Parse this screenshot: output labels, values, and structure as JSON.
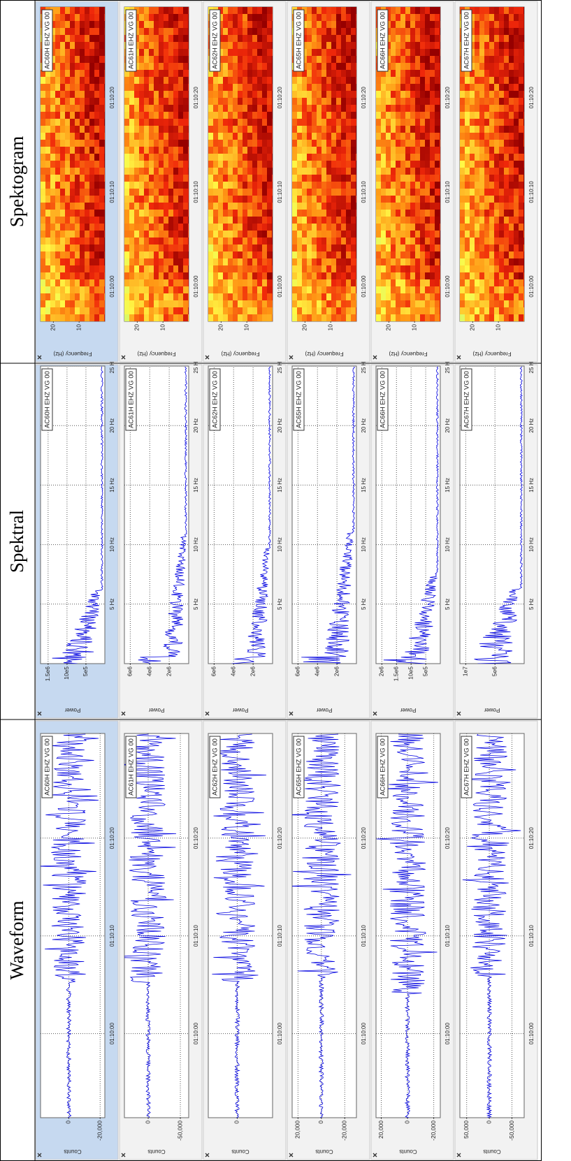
{
  "columns": [
    {
      "title": "Waveform",
      "y_axis_label": "Counts",
      "xlim": [
        4191.4,
        4230.7
      ],
      "xticks": [
        {
          "value": 4200,
          "label": "01:10:00"
        },
        {
          "value": 4210,
          "label": "01:10:10"
        },
        {
          "value": 4220,
          "label": "01:10:20"
        }
      ],
      "panels": [
        {
          "station": "AC60H EHZ VG 00",
          "ylim": [
            -23000,
            18000
          ],
          "yticks": [
            0,
            {
              "value": -20000,
              "label": "-20,000"
            }
          ]
        },
        {
          "station": "AC61H EHZ VG 00",
          "ylim": [
            -63000,
            37000
          ],
          "yticks": [
            0,
            {
              "value": -50000,
              "label": "-50,000"
            }
          ]
        },
        {
          "station": "AC62H EHZ VG 00",
          "ylim": [
            -55000,
            45000
          ],
          "yticks": [
            0
          ]
        },
        {
          "station": "AC65H EHZ VG 00",
          "ylim": [
            -30000,
            25000
          ],
          "yticks": [
            {
              "value": 20000,
              "label": "20,000"
            },
            0,
            {
              "value": -20000,
              "label": "-20,000"
            }
          ]
        },
        {
          "station": "AC66H EHZ VG 00",
          "ylim": [
            -25000,
            24000
          ],
          "yticks": [
            {
              "value": 20000,
              "label": "20,000"
            },
            0,
            {
              "value": -20000,
              "label": "-20,000"
            }
          ]
        },
        {
          "station": "AC67H EHZ VG 00",
          "ylim": [
            -77000,
            65000
          ],
          "yticks": [
            {
              "value": 50000,
              "label": "50,000"
            },
            0,
            {
              "value": -50000,
              "label": "-50,000"
            }
          ]
        }
      ]
    },
    {
      "title": "Spektral",
      "y_axis_label": "Power",
      "xlim": [
        0,
        25
      ],
      "xticks": [
        {
          "value": 5,
          "label": "5 Hz"
        },
        {
          "value": 10,
          "label": "10 Hz"
        },
        {
          "value": 15,
          "label": "15 Hz"
        },
        {
          "value": 20,
          "label": "20 Hz"
        },
        {
          "value": 25,
          "label": "25 Hz"
        }
      ],
      "panels": [
        {
          "station": "AC60H EHZ VG 00",
          "ylim": [
            0,
            1700000
          ],
          "yticks": [
            {
              "value": 1500000,
              "label": "1.5e6"
            },
            {
              "value": 1000000,
              "label": "10e5"
            },
            {
              "value": 500000,
              "label": "5e5"
            }
          ]
        },
        {
          "station": "AC61H EHZ VG 00",
          "ylim": [
            0,
            6600000
          ],
          "yticks": [
            {
              "value": 6000000,
              "label": "6e6"
            },
            {
              "value": 4000000,
              "label": "4e6"
            },
            {
              "value": 2000000,
              "label": "2e6"
            }
          ]
        },
        {
          "station": "AC62H EHZ VG 00",
          "ylim": [
            0,
            6600000
          ],
          "yticks": [
            {
              "value": 6000000,
              "label": "6e6"
            },
            {
              "value": 4000000,
              "label": "4e6"
            },
            {
              "value": 2000000,
              "label": "2e6"
            }
          ]
        },
        {
          "station": "AC65H EHZ VG 00",
          "ylim": [
            0,
            6600000
          ],
          "yticks": [
            {
              "value": 6000000,
              "label": "6e6"
            },
            {
              "value": 4000000,
              "label": "4e6"
            },
            {
              "value": 2000000,
              "label": "2e6"
            }
          ]
        },
        {
          "station": "AC66H EHZ VG 00",
          "ylim": [
            0,
            2200000
          ],
          "yticks": [
            {
              "value": 2000000,
              "label": "2e6"
            },
            {
              "value": 1500000,
              "label": "1.5e6"
            },
            {
              "value": 1000000,
              "label": "10e5"
            },
            {
              "value": 500000,
              "label": "5e5"
            }
          ]
        },
        {
          "station": "AC67H EHZ VG 00",
          "ylim": [
            0,
            11000000
          ],
          "yticks": [
            {
              "value": 10000000,
              "label": "1e7"
            },
            {
              "value": 5000000,
              "label": "5e6"
            }
          ]
        }
      ]
    },
    {
      "title": "Spektogram",
      "y_axis_label": "Frequency (Hz)",
      "xlim": [
        4196.3,
        4229.6
      ],
      "xticks": [
        {
          "value": 4200,
          "label": "01:10:00"
        },
        {
          "value": 4210,
          "label": "01:10:10"
        },
        {
          "value": 4220,
          "label": "01:10:20"
        }
      ],
      "panels": [
        {
          "station": "AC60H EHZ VG 00",
          "ylim": [
            0,
            25
          ],
          "yticks": [
            20,
            10
          ]
        },
        {
          "station": "AC61H EHZ VG 00",
          "ylim": [
            0,
            25
          ],
          "yticks": [
            20,
            10
          ]
        },
        {
          "station": "AC62H EHZ VG 00",
          "ylim": [
            0,
            25
          ],
          "yticks": [
            20,
            10
          ]
        },
        {
          "station": "AC65H EHZ VG 00",
          "ylim": [
            0,
            25
          ],
          "yticks": [
            20,
            10
          ]
        },
        {
          "station": "AC66H EHZ VG 00",
          "ylim": [
            0,
            25
          ],
          "yticks": [
            20,
            10
          ]
        },
        {
          "station": "AC67H EHZ VG 00",
          "ylim": [
            0,
            25
          ],
          "yticks": [
            20,
            10
          ]
        }
      ]
    }
  ]
}
